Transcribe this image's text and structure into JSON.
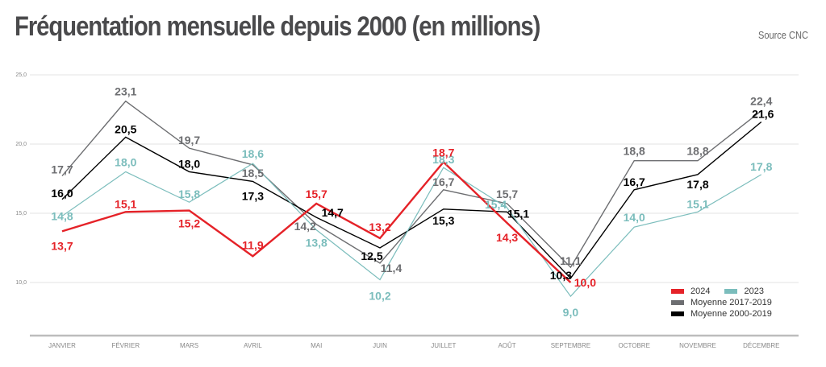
{
  "header": {
    "title": "Fréquentation mensuelle depuis 2000 (en millions)",
    "source": "Source CNC"
  },
  "chart_data": {
    "type": "line",
    "title": "Fréquentation mensuelle depuis 2000 (en millions)",
    "xlabel": "",
    "ylabel": "",
    "ylim": [
      6.2,
      25
    ],
    "yticks": [
      10,
      15,
      20,
      25
    ],
    "ytick_labels": [
      "10,0",
      "15,0",
      "20,0",
      "25,0"
    ],
    "grid": true,
    "legend_position": "bottom-right",
    "categories": [
      "JANVIER",
      "FÉVRIER",
      "MARS",
      "AVRIL",
      "MAI",
      "JUIN",
      "JUILLET",
      "AOÛT",
      "SEPTEMBRE",
      "OCTOBRE",
      "NOVEMBRE",
      "DÉCEMBRE"
    ],
    "series": [
      {
        "name": "Moyenne 2017-2019",
        "color": "#6d6e71",
        "values": [
          17.7,
          23.1,
          19.7,
          18.5,
          14.2,
          11.4,
          16.7,
          15.7,
          11.1,
          18.8,
          18.8,
          22.4
        ],
        "labels": [
          "17,7",
          "23,1",
          "19,7",
          "18,5",
          "14,2",
          "11,4",
          "16,7",
          "15,7",
          "11,1",
          "18,8",
          "18,8",
          "22,4"
        ]
      },
      {
        "name": "Moyenne 2000-2019",
        "color": "#000000",
        "values": [
          16.0,
          20.5,
          18.0,
          17.3,
          14.7,
          12.5,
          15.3,
          15.1,
          10.3,
          16.7,
          17.8,
          21.6
        ],
        "labels": [
          "16,0",
          "20,5",
          "18,0",
          "17,3",
          "14,7",
          "12,5",
          "15,3",
          "15,1",
          "10,3",
          "16,7",
          "17,8",
          "21,6"
        ]
      },
      {
        "name": "2023",
        "color": "#7bbdbc",
        "values": [
          14.8,
          18.0,
          15.8,
          18.6,
          13.8,
          10.2,
          18.3,
          15.4,
          9.0,
          14.0,
          15.1,
          17.8
        ],
        "labels": [
          "14,8",
          "18,0",
          "15,8",
          "18,6",
          "13,8",
          "10,2",
          "18,3",
          "15,4",
          "9,0",
          "14,0",
          "15,1",
          "17,8"
        ]
      },
      {
        "name": "2024",
        "color": "#e52228",
        "values": [
          13.7,
          15.1,
          15.2,
          11.9,
          15.7,
          13.2,
          18.7,
          14.3,
          10.0,
          null,
          null,
          null
        ],
        "labels": [
          "13,7",
          "15,1",
          "15,2",
          "11,9",
          "15,7",
          "13,2",
          "18,7",
          "14,3",
          "10,0",
          null,
          null,
          null
        ]
      }
    ]
  },
  "legend": {
    "items": [
      {
        "label": "2024",
        "color": "#e52228"
      },
      {
        "label": "2023",
        "color": "#7bbdbc"
      },
      {
        "label": "Moyenne 2017-2019",
        "color": "#6d6e71"
      },
      {
        "label": "Moyenne 2000-2019",
        "color": "#000000"
      }
    ]
  }
}
